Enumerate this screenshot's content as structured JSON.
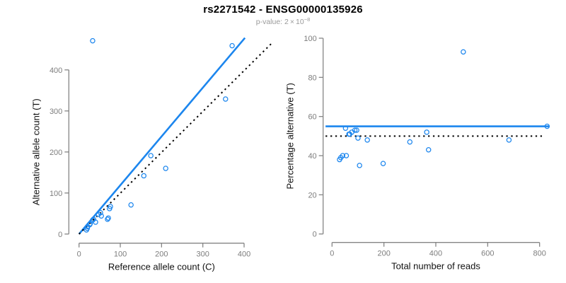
{
  "header": {
    "title": "rs2271542 - ENSG00000135926",
    "pvalue_prefix": "p-value:",
    "pvalue_mantissa": "2",
    "pvalue_times": "×",
    "pvalue_base": "10",
    "pvalue_exponent": "−8"
  },
  "colors": {
    "accent_blue": "#1C86EE",
    "axis_gray": "#858585",
    "tick_label_gray": "#7d7d7d",
    "axis_title_black": "#111111",
    "dotted_black": "#000000",
    "subtitle_gray": "#9a9a9a"
  },
  "chart_data": [
    {
      "id": "allele-counts",
      "type": "scatter",
      "xlabel": "Reference allele count (C)",
      "ylabel": "Alternative allele count (T)",
      "xticks": [
        0,
        100,
        200,
        300,
        400
      ],
      "yticks": [
        0,
        100,
        200,
        300,
        400
      ],
      "xlim": [
        0,
        470
      ],
      "ylim": [
        0,
        485
      ],
      "grid": false,
      "points": [
        [
          18,
          10
        ],
        [
          20,
          14
        ],
        [
          21,
          18
        ],
        [
          26,
          23
        ],
        [
          27,
          25
        ],
        [
          33,
          34
        ],
        [
          35,
          36
        ],
        [
          40,
          29
        ],
        [
          47,
          48
        ],
        [
          52,
          52
        ],
        [
          54,
          44
        ],
        [
          69,
          36
        ],
        [
          71,
          39
        ],
        [
          74,
          62
        ],
        [
          76,
          67
        ],
        [
          126,
          71
        ],
        [
          157,
          142
        ],
        [
          174,
          191
        ],
        [
          210,
          160
        ],
        [
          355,
          329
        ],
        [
          371,
          459
        ],
        [
          33,
          471
        ]
      ],
      "lines": [
        {
          "name": "fit-line",
          "style": "solid",
          "color": "accent_blue",
          "x1": 0,
          "y1": 0,
          "x2": 402,
          "y2": 478
        },
        {
          "name": "identity-line",
          "style": "dotted",
          "color": "dotted_black",
          "x1": 0,
          "y1": 0,
          "x2": 470,
          "y2": 468
        }
      ]
    },
    {
      "id": "percentage-vs-reads",
      "type": "scatter",
      "xlabel": "Total number of reads",
      "ylabel": "Percentage alternative (T)",
      "xticks": [
        0,
        200,
        400,
        600,
        800
      ],
      "yticks": [
        0,
        20,
        40,
        60,
        80,
        100
      ],
      "xlim": [
        -30,
        845
      ],
      "ylim": [
        0,
        100
      ],
      "grid": false,
      "points": [
        [
          29,
          38
        ],
        [
          34,
          39
        ],
        [
          41,
          40
        ],
        [
          52,
          54
        ],
        [
          55,
          40
        ],
        [
          65,
          51
        ],
        [
          68,
          51
        ],
        [
          76,
          52
        ],
        [
          88,
          53
        ],
        [
          95,
          53
        ],
        [
          100,
          49
        ],
        [
          106,
          35
        ],
        [
          136,
          48
        ],
        [
          197,
          36
        ],
        [
          300,
          47
        ],
        [
          365,
          52
        ],
        [
          372,
          43
        ],
        [
          506,
          93
        ],
        [
          682,
          48
        ],
        [
          829,
          55
        ]
      ],
      "lines": [
        {
          "name": "fit-line",
          "style": "solid",
          "color": "accent_blue",
          "x1": -25,
          "y1": 55,
          "x2": 838,
          "y2": 55
        },
        {
          "name": "null-line",
          "style": "dotted",
          "color": "dotted_black",
          "x1": -25,
          "y1": 50,
          "x2": 820,
          "y2": 50
        }
      ]
    }
  ]
}
